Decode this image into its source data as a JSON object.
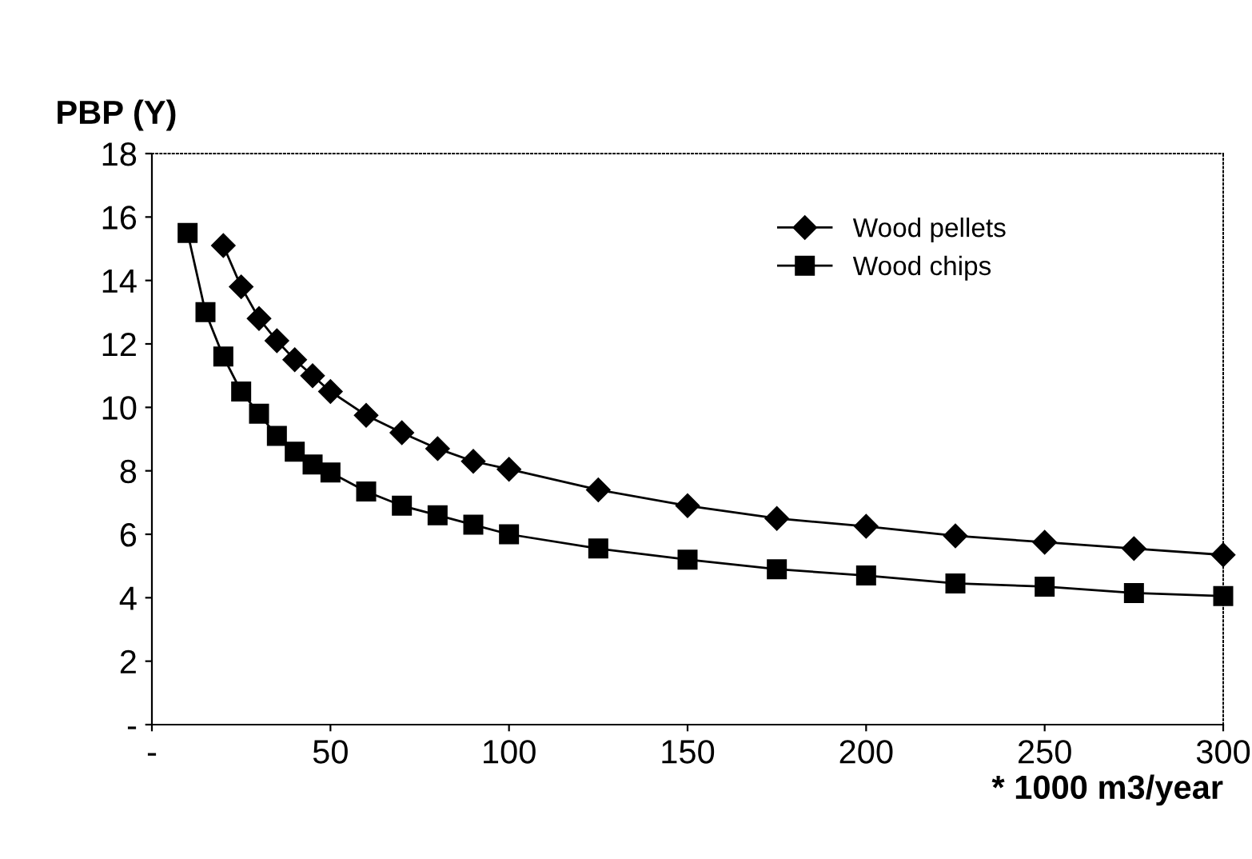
{
  "chart_data": {
    "type": "line",
    "ylabel": "PBP (Y)",
    "xlabel": "* 1000 m3/year",
    "xlim": [
      0,
      300
    ],
    "xticks": [
      {
        "value": 0,
        "label": "-"
      },
      50,
      100,
      150,
      200,
      250,
      300
    ],
    "ylim": [
      0,
      18
    ],
    "yticks": [
      {
        "value": 0,
        "label": "-"
      },
      2,
      4,
      6,
      8,
      10,
      12,
      14,
      16,
      18
    ],
    "grid": false,
    "legend": "top right",
    "series": [
      {
        "name": "Wood pellets",
        "color": "#000000",
        "marker": "diamond",
        "x": [
          20,
          25,
          30,
          35,
          40,
          45,
          50,
          60,
          70,
          80,
          90,
          100,
          125,
          150,
          175,
          200,
          225,
          250,
          275,
          300
        ],
        "values": [
          15.1,
          13.8,
          12.8,
          12.1,
          11.5,
          11.0,
          10.5,
          9.75,
          9.2,
          8.7,
          8.3,
          8.05,
          7.4,
          6.9,
          6.5,
          6.25,
          5.95,
          5.75,
          5.55,
          5.35
        ]
      },
      {
        "name": "Wood chips",
        "color": "#000000",
        "marker": "square",
        "x": [
          10,
          15,
          20,
          25,
          30,
          35,
          40,
          45,
          50,
          60,
          70,
          80,
          90,
          100,
          125,
          150,
          175,
          200,
          225,
          250,
          275,
          300
        ],
        "values": [
          15.5,
          13.0,
          11.6,
          10.5,
          9.8,
          9.1,
          8.6,
          8.2,
          7.95,
          7.35,
          6.9,
          6.6,
          6.3,
          6.0,
          5.55,
          5.2,
          4.9,
          4.7,
          4.45,
          4.35,
          4.15,
          4.05
        ]
      }
    ]
  }
}
